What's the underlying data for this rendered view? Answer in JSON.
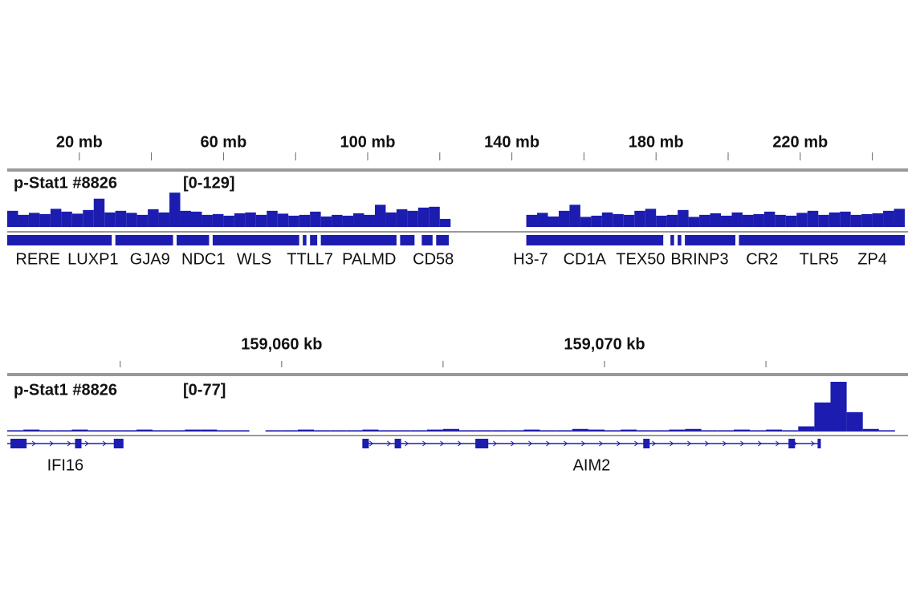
{
  "chart_data": [
    {
      "type": "coverage",
      "track_name": "p-Stat1 #8826",
      "range_label": "[0-129]",
      "ylim": [
        0,
        129
      ],
      "color": "#1c1cb0",
      "xlim": [
        0,
        249
      ],
      "xticks": [
        {
          "value": 20,
          "label": "20 mb"
        },
        {
          "value": 60,
          "label": "60 mb"
        },
        {
          "value": 100,
          "label": "100 mb"
        },
        {
          "value": 140,
          "label": "140 mb"
        },
        {
          "value": 180,
          "label": "180 mb"
        },
        {
          "value": 220,
          "label": "220 mb"
        }
      ],
      "xminorticks": [
        40,
        80,
        120,
        160,
        200,
        240
      ],
      "bin_start": 0,
      "bin_width": 3,
      "values": [
        40,
        30,
        35,
        32,
        45,
        38,
        33,
        42,
        70,
        36,
        40,
        35,
        30,
        44,
        36,
        85,
        40,
        38,
        30,
        32,
        28,
        34,
        36,
        30,
        40,
        33,
        28,
        30,
        38,
        26,
        30,
        28,
        34,
        30,
        55,
        36,
        44,
        40,
        48,
        50,
        20,
        null,
        null,
        null,
        null,
        null,
        null,
        null,
        30,
        35,
        26,
        40,
        55,
        25,
        28,
        36,
        32,
        30,
        40,
        45,
        28,
        30,
        42,
        25,
        30,
        34,
        28,
        36,
        30,
        32,
        38,
        30,
        28,
        35,
        40,
        30,
        36,
        38,
        30,
        32,
        34,
        40,
        45
      ],
      "features": [
        [
          0,
          29
        ],
        [
          30,
          46
        ],
        [
          47,
          56
        ],
        [
          57,
          81
        ],
        [
          82,
          83
        ],
        [
          84,
          86
        ],
        [
          87,
          108
        ],
        [
          109,
          113
        ],
        [
          115,
          118
        ],
        [
          119,
          122.5
        ],
        [
          144,
          182
        ],
        [
          184,
          185
        ],
        [
          186,
          187
        ],
        [
          188,
          202
        ],
        [
          203,
          249
        ]
      ],
      "genes": [
        {
          "name": "RERE",
          "position": 8.5
        },
        {
          "name": "LUXP1",
          "position": 23.8
        },
        {
          "name": "GJA9",
          "position": 39.6
        },
        {
          "name": "NDC1",
          "position": 54.4
        },
        {
          "name": "WLS",
          "position": 68.5
        },
        {
          "name": "TTLL7",
          "position": 84.0
        },
        {
          "name": "PALMD",
          "position": 100.4
        },
        {
          "name": "CD58",
          "position": 118.2
        },
        {
          "name": "H3-7",
          "position": 145.2
        },
        {
          "name": "CD1A",
          "position": 160.2
        },
        {
          "name": "TEX50",
          "position": 175.7
        },
        {
          "name": "BRINP3",
          "position": 192.1
        },
        {
          "name": "CR2",
          "position": 209.4
        },
        {
          "name": "TLR5",
          "position": 225.2
        },
        {
          "name": "ZP4",
          "position": 240.0
        }
      ]
    },
    {
      "type": "coverage",
      "track_name": "p-Stat1 #8826",
      "range_label": "[0-77]",
      "ylim": [
        0,
        77
      ],
      "color": "#1c1cb0",
      "xlim": [
        159051.5,
        159079.3
      ],
      "xticks": [
        {
          "value": 159060,
          "label": "159,060 kb"
        },
        {
          "value": 159070,
          "label": "159,070 kb"
        }
      ],
      "xminorticks": [
        159055,
        159065,
        159075
      ],
      "bin_start": 159051.5,
      "bin_width": 0.5,
      "values": [
        2,
        3,
        2,
        2,
        3,
        2,
        2,
        2,
        3,
        2,
        2,
        3,
        3,
        2,
        2,
        0,
        2,
        2,
        3,
        2,
        2,
        2,
        3,
        2,
        2,
        2,
        3,
        4,
        2,
        2,
        2,
        2,
        3,
        2,
        2,
        4,
        3,
        2,
        3,
        2,
        2,
        3,
        4,
        2,
        2,
        3,
        2,
        3,
        2,
        8,
        45,
        77,
        30,
        4,
        2,
        0
      ],
      "genes": [
        {
          "name": "IFI16",
          "start": 159051.5,
          "end": 159055.1,
          "exons": [
            [
              159051.6,
              159052.1
            ],
            [
              159053.6,
              159053.8
            ],
            [
              159054.8,
              159055.1
            ]
          ]
        },
        {
          "name": "AIM2",
          "start": 159062.5,
          "end": 159076.7,
          "exons": [
            [
              159062.5,
              159062.7
            ],
            [
              159063.5,
              159063.7
            ],
            [
              159066.0,
              159066.4
            ],
            [
              159071.2,
              159071.4
            ],
            [
              159075.7,
              159075.9
            ],
            [
              159076.6,
              159076.7
            ]
          ]
        }
      ]
    }
  ]
}
